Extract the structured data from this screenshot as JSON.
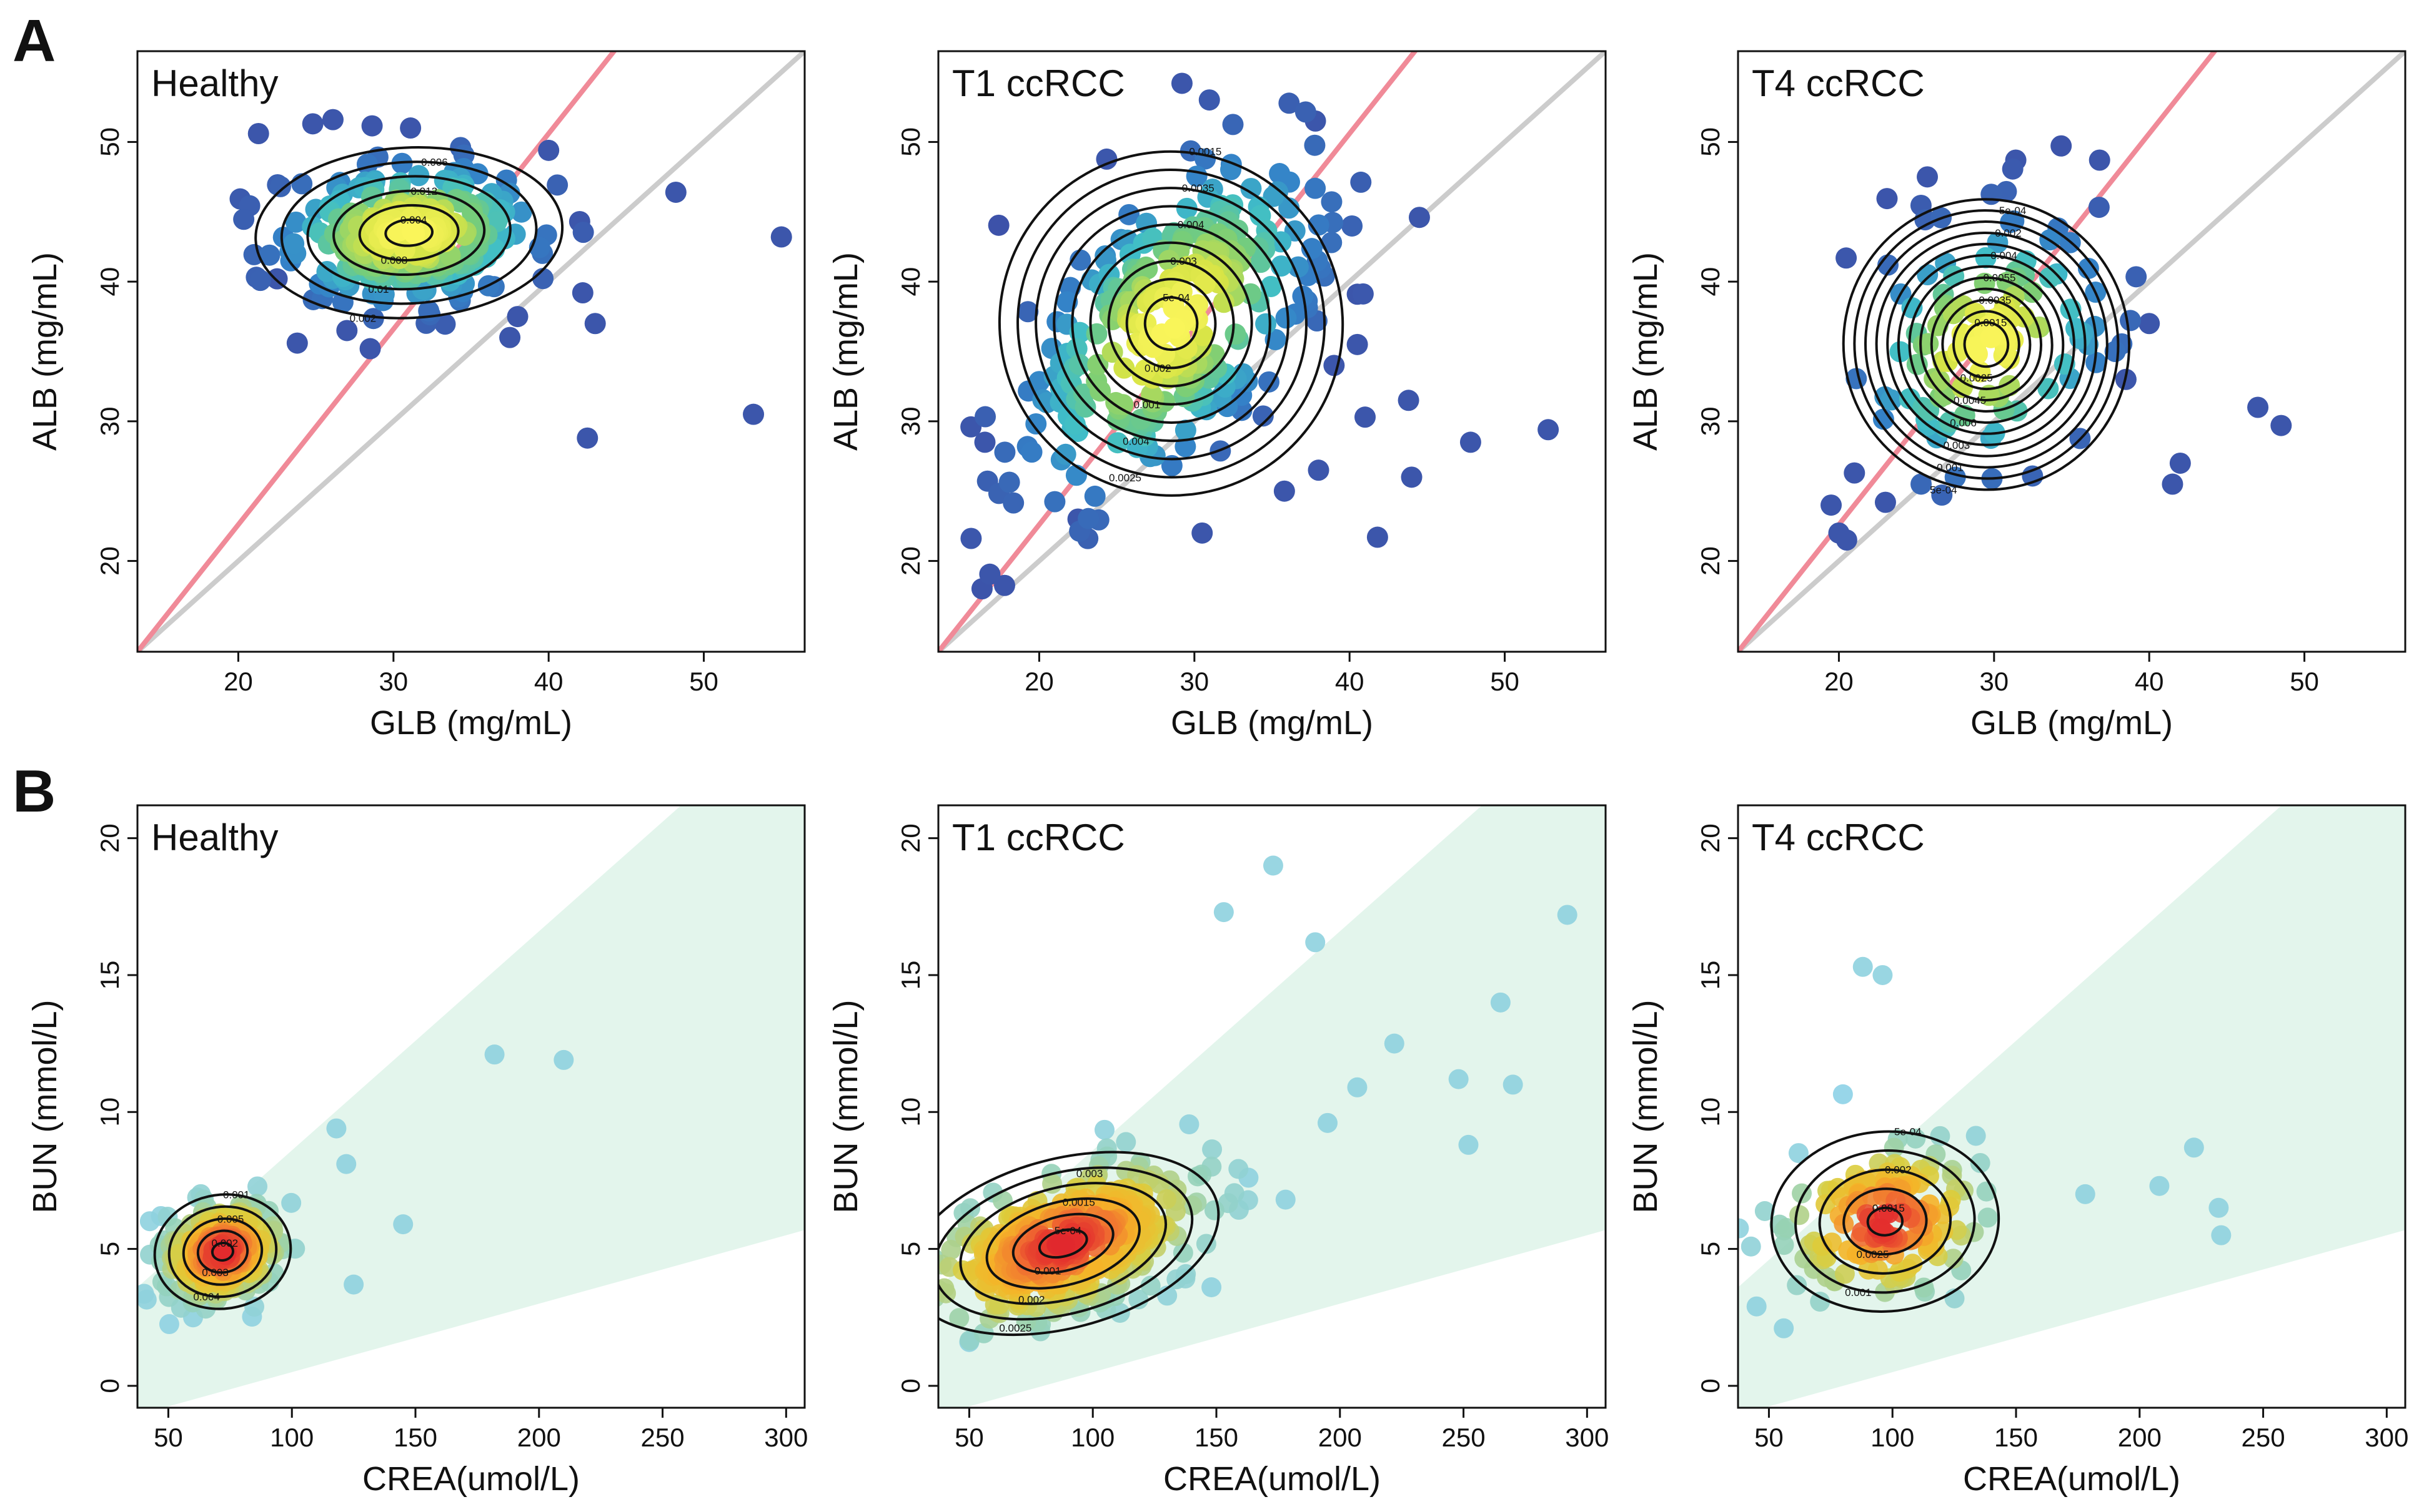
{
  "panel_labels": [
    "A",
    "B"
  ],
  "chart_data": [
    {
      "type": "scatter",
      "panel": "A",
      "title": "Healthy",
      "xlabel": "GLB (mg/mL)",
      "ylabel": "ALB (mg/mL)",
      "xlim": [
        13.5,
        56.5
      ],
      "ylim": [
        13.5,
        56.5
      ],
      "xticks": [
        20,
        30,
        40,
        50
      ],
      "yticks": [
        20,
        30,
        40,
        50
      ],
      "reference_lines": [
        {
          "name": "identity",
          "slope": 1,
          "color": "#cccccc"
        },
        {
          "name": "ratio",
          "slope": 1.4,
          "color": "#f08a98"
        }
      ],
      "density_peak": {
        "x": 31,
        "y": 43.5,
        "sx": 4.3,
        "sy": 2.6,
        "rho": 0.1
      },
      "contour_labels": [
        "0.004",
        "0.008",
        "0.012",
        "0.01",
        "0.006",
        "0.002"
      ],
      "outliers": [
        [
          21.3,
          50.6
        ],
        [
          24.8,
          51.3
        ],
        [
          26.1,
          51.6
        ],
        [
          31.1,
          51.0
        ],
        [
          40.0,
          49.4
        ],
        [
          48.2,
          46.4
        ],
        [
          55.0,
          43.2
        ],
        [
          42.0,
          44.3
        ],
        [
          42.2,
          39.2
        ],
        [
          43.0,
          37.0
        ],
        [
          42.5,
          28.8
        ],
        [
          53.2,
          30.5
        ],
        [
          37.5,
          36.0
        ],
        [
          27.0,
          36.5
        ],
        [
          28.5,
          35.2
        ],
        [
          23.8,
          35.6
        ],
        [
          22.5,
          40.2
        ],
        [
          38.0,
          37.5
        ]
      ],
      "n_points": 260
    },
    {
      "type": "scatter",
      "panel": "A",
      "title": "T1 ccRCC",
      "xlabel": "GLB (mg/mL)",
      "ylabel": "ALB (mg/mL)",
      "xlim": [
        13.5,
        56.5
      ],
      "ylim": [
        13.5,
        56.5
      ],
      "xticks": [
        20,
        30,
        40,
        50
      ],
      "yticks": [
        20,
        30,
        40,
        50
      ],
      "reference_lines": [
        {
          "name": "identity",
          "slope": 1,
          "color": "#cccccc"
        },
        {
          "name": "ratio",
          "slope": 1.4,
          "color": "#f08a98"
        }
      ],
      "density_peak": {
        "x": 28.5,
        "y": 37.0,
        "sx": 4.8,
        "sy": 6.2,
        "rho": 0.55
      },
      "contour_labels": [
        "5e-04",
        "0.002",
        "0.003",
        "0.001",
        "0.004",
        "0.004",
        "0.0035",
        "0.0025",
        "0.0015"
      ],
      "outliers": [
        [
          29.2,
          54.2
        ],
        [
          37.8,
          51.5
        ],
        [
          15.6,
          29.6
        ],
        [
          16.5,
          28.5
        ],
        [
          44.5,
          44.6
        ],
        [
          40.5,
          39.1
        ],
        [
          41.0,
          30.3
        ],
        [
          43.8,
          31.5
        ],
        [
          44.0,
          26.0
        ],
        [
          47.8,
          28.5
        ],
        [
          52.8,
          29.4
        ],
        [
          41.8,
          21.7
        ],
        [
          35.8,
          25.0
        ],
        [
          38.0,
          26.5
        ],
        [
          30.5,
          22.0
        ],
        [
          22.5,
          23.0
        ],
        [
          40.5,
          35.5
        ],
        [
          39.0,
          34.0
        ]
      ],
      "n_points": 300
    },
    {
      "type": "scatter",
      "panel": "A",
      "title": "T4 ccRCC",
      "xlabel": "GLB (mg/mL)",
      "ylabel": "ALB (mg/mL)",
      "xlim": [
        13.5,
        56.5
      ],
      "ylim": [
        13.5,
        56.5
      ],
      "xticks": [
        20,
        30,
        40,
        50
      ],
      "yticks": [
        20,
        30,
        40,
        50
      ],
      "reference_lines": [
        {
          "name": "identity",
          "slope": 1,
          "color": "#cccccc"
        },
        {
          "name": "ratio",
          "slope": 1.4,
          "color": "#f08a98"
        }
      ],
      "density_peak": {
        "x": 29.5,
        "y": 35.5,
        "sx": 4.0,
        "sy": 4.5,
        "rho": 0.2
      },
      "contour_labels": [
        "0.0015",
        "0.0025",
        "0.0035",
        "0.0045",
        "0.0055",
        "0.006",
        "0.004",
        "0.003",
        "0.002",
        "0.001",
        "5e-04",
        "5e-04"
      ],
      "outliers": [
        [
          25.7,
          47.5
        ],
        [
          31.4,
          48.7
        ],
        [
          36.8,
          48.7
        ],
        [
          47.0,
          31.0
        ],
        [
          48.5,
          29.7
        ],
        [
          40.0,
          37.0
        ],
        [
          41.5,
          25.5
        ],
        [
          20.0,
          22.0
        ],
        [
          20.5,
          21.5
        ],
        [
          19.5,
          24.0
        ],
        [
          38.5,
          33.0
        ],
        [
          21.0,
          26.3
        ],
        [
          42.0,
          27.0
        ],
        [
          23.0,
          24.2
        ]
      ],
      "n_points": 120
    },
    {
      "type": "scatter",
      "panel": "B",
      "title": "Healthy",
      "xlabel": "CREA(umol/L)",
      "ylabel": "BUN (mmol/L)",
      "xlim": [
        37.5,
        307.5
      ],
      "ylim": [
        -0.8,
        21.2
      ],
      "xticks": [
        50,
        100,
        150,
        200,
        250,
        300
      ],
      "yticks": [
        0,
        5,
        10,
        15,
        20
      ],
      "band": {
        "lower_slope": 0.025,
        "upper_slope": 0.08,
        "color": "#e3f5ec"
      },
      "density_peak": {
        "x": 72,
        "y": 4.9,
        "sx": 12,
        "sy": 0.9,
        "rho": 0.2
      },
      "contour_labels": [
        "0.002",
        "0.003",
        "0.005",
        "0.004",
        "0.001"
      ],
      "outliers": [
        [
          182,
          12.1
        ],
        [
          210,
          11.9
        ],
        [
          118,
          9.4
        ],
        [
          122,
          8.1
        ],
        [
          145,
          5.9
        ],
        [
          125,
          3.7
        ],
        [
          60,
          2.5
        ],
        [
          47,
          6.2
        ]
      ],
      "n_points": 250
    },
    {
      "type": "scatter",
      "panel": "B",
      "title": "T1 ccRCC",
      "xlabel": "CREA(umol/L)",
      "ylabel": "BUN (mmol/L)",
      "xlim": [
        37.5,
        307.5
      ],
      "ylim": [
        -0.8,
        21.2
      ],
      "xticks": [
        50,
        100,
        150,
        200,
        250,
        300
      ],
      "yticks": [
        0,
        5,
        10,
        15,
        20
      ],
      "band": {
        "lower_slope": 0.025,
        "upper_slope": 0.08,
        "color": "#e3f5ec"
      },
      "density_peak": {
        "x": 88,
        "y": 5.2,
        "sx": 28,
        "sy": 1.5,
        "rho": 0.5
      },
      "contour_labels": [
        "5e-04",
        "0.001",
        "0.0015",
        "0.002",
        "0.003",
        "0.0025"
      ],
      "outliers": [
        [
          173,
          19.0
        ],
        [
          292,
          17.2
        ],
        [
          153,
          17.3
        ],
        [
          190,
          16.2
        ],
        [
          265,
          14.0
        ],
        [
          248,
          11.2
        ],
        [
          252,
          8.8
        ],
        [
          270,
          11.0
        ],
        [
          222,
          12.5
        ],
        [
          207,
          10.9
        ],
        [
          195,
          9.6
        ],
        [
          163,
          7.6
        ],
        [
          178,
          6.8
        ],
        [
          148,
          3.6
        ],
        [
          50,
          1.6
        ]
      ],
      "n_points": 400
    },
    {
      "type": "scatter",
      "panel": "B",
      "title": "T4 ccRCC",
      "xlabel": "CREA(umol/L)",
      "ylabel": "BUN (mmol/L)",
      "xlim": [
        37.5,
        307.5
      ],
      "ylim": [
        -0.8,
        21.2
      ],
      "xticks": [
        50,
        100,
        150,
        200,
        250,
        300
      ],
      "yticks": [
        0,
        5,
        10,
        15,
        20
      ],
      "band": {
        "lower_slope": 0.025,
        "upper_slope": 0.08,
        "color": "#e3f5ec"
      },
      "density_peak": {
        "x": 97,
        "y": 6.0,
        "sx": 20,
        "sy": 1.4,
        "rho": 0.1
      },
      "contour_labels": [
        "0.0015",
        "0.0025",
        "0.002",
        "0.001",
        "5e-04"
      ],
      "outliers": [
        [
          88,
          15.3
        ],
        [
          96,
          15.0
        ],
        [
          222,
          8.7
        ],
        [
          232,
          6.5
        ],
        [
          233,
          5.5
        ],
        [
          208,
          7.3
        ],
        [
          178,
          7.0
        ],
        [
          45,
          2.9
        ],
        [
          56,
          2.1
        ],
        [
          62,
          8.5
        ]
      ],
      "n_points": 150
    }
  ]
}
